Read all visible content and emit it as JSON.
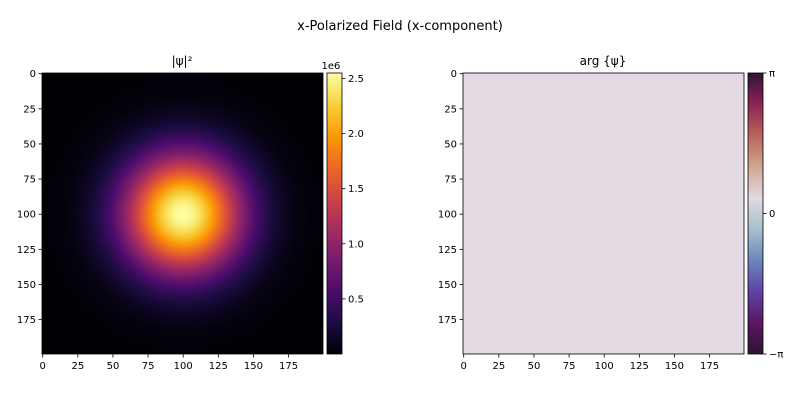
{
  "figure": {
    "suptitle": "x-Polarized Field (x-component)"
  },
  "chart_data": [
    {
      "type": "heatmap",
      "title": "|ψ|²",
      "xlabel": "",
      "ylabel": "",
      "xlim": [
        0,
        199
      ],
      "ylim": [
        199,
        0
      ],
      "x_ticks": [
        0,
        25,
        50,
        75,
        100,
        125,
        150,
        175
      ],
      "y_ticks": [
        0,
        25,
        50,
        75,
        100,
        125,
        150,
        175
      ],
      "x_tick_labels": [
        "0",
        "25",
        "50",
        "75",
        "100",
        "125",
        "150",
        "175"
      ],
      "y_tick_labels": [
        "0",
        "25",
        "50",
        "75",
        "100",
        "125",
        "150",
        "175"
      ],
      "grid": false,
      "colormap": "inferno",
      "colormap_stops": [
        "#000004",
        "#1b0c41",
        "#4a0c6b",
        "#781c6d",
        "#a52c60",
        "#cf4446",
        "#ed6925",
        "#fb9b06",
        "#f7d13d",
        "#fcffa4"
      ],
      "field": {
        "shape": "gaussian",
        "center_x": 100,
        "center_y": 100,
        "sigma": 30,
        "peak": 2550000,
        "min": 0
      },
      "colorbar": {
        "min": 0,
        "max": 2550000,
        "ticks": [
          500000,
          1000000,
          1500000,
          2000000,
          2500000
        ],
        "tick_labels": [
          "0.5",
          "1.0",
          "1.5",
          "2.0",
          "2.5"
        ],
        "offset_label": "1e6"
      }
    },
    {
      "type": "heatmap",
      "title": "arg {ψ}",
      "xlabel": "",
      "ylabel": "",
      "xlim": [
        0,
        199
      ],
      "ylim": [
        199,
        0
      ],
      "x_ticks": [
        0,
        25,
        50,
        75,
        100,
        125,
        150,
        175
      ],
      "y_ticks": [
        0,
        25,
        50,
        75,
        100,
        125,
        150,
        175
      ],
      "x_tick_labels": [
        "0",
        "25",
        "50",
        "75",
        "100",
        "125",
        "150",
        "175"
      ],
      "y_tick_labels": [
        "0",
        "25",
        "50",
        "75",
        "100",
        "125",
        "150",
        "175"
      ],
      "grid": false,
      "colormap": "twilight",
      "colormap_stops": [
        "#2f1436",
        "#5b1661",
        "#5e43a5",
        "#6a86bd",
        "#a8c1cc",
        "#e2d9e2",
        "#cfa78e",
        "#b8645b",
        "#8b2454",
        "#2f1436"
      ],
      "field": {
        "shape": "uniform",
        "value": 0,
        "fill_color": "#e2d9e2"
      },
      "colorbar": {
        "min": -3.14159,
        "max": 3.14159,
        "ticks": [
          -3.14159,
          0,
          3.14159
        ],
        "tick_labels": [
          "−π",
          "0",
          "π"
        ]
      }
    }
  ]
}
